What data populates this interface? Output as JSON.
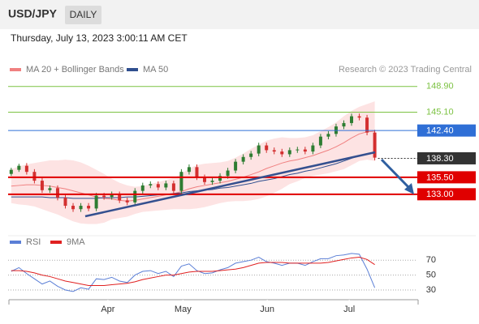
{
  "chart_data": {
    "type": "candlestick",
    "title": "USD/JPY",
    "period": "DAILY",
    "subtitle": "Thursday, July 13, 2023 3:00:11 AM CET",
    "credit": "Research © 2023 Trading Central",
    "xlim": [
      -0.4,
      52.5
    ],
    "ylim": [
      128.2,
      150.3
    ],
    "xticks": [
      {
        "value": 12.5,
        "label": "Apr"
      },
      {
        "value": 22.2,
        "label": "May"
      },
      {
        "value": 33.1,
        "label": "Jun"
      },
      {
        "value": 43.7,
        "label": "Jul"
      }
    ],
    "up_color": "#2e7d32",
    "down_color": "#d32f2f",
    "open": [
      136.0,
      136.6,
      137.2,
      136.3,
      135.0,
      133.6,
      133.9,
      132.5,
      131.3,
      130.8,
      131.3,
      130.9,
      132.8,
      132.6,
      133.0,
      132.1,
      131.8,
      133.5,
      134.3,
      134.5,
      134.0,
      134.6,
      133.5,
      136.3,
      137.0,
      135.5,
      134.8,
      135.0,
      135.7,
      136.5,
      137.8,
      138.5,
      139.0,
      140.2,
      139.5,
      139.3,
      138.9,
      139.5,
      139.6,
      139.3,
      140.2,
      141.5,
      141.9,
      143.0,
      143.5,
      144.5,
      144.3,
      142.1
    ],
    "high": [
      136.9,
      137.5,
      137.6,
      136.7,
      135.4,
      134.3,
      134.3,
      132.9,
      131.7,
      131.7,
      131.7,
      133.2,
      133.2,
      133.4,
      133.4,
      132.5,
      133.9,
      134.7,
      134.9,
      134.9,
      135.0,
      135.0,
      136.7,
      137.4,
      137.4,
      135.9,
      135.4,
      136.1,
      136.9,
      138.2,
      138.9,
      139.4,
      140.6,
      140.6,
      139.9,
      139.7,
      139.9,
      140.0,
      140.0,
      140.6,
      141.9,
      142.3,
      143.4,
      143.9,
      144.9,
      144.9,
      144.7,
      142.5
    ],
    "low": [
      135.7,
      136.3,
      135.9,
      134.6,
      133.2,
      133.2,
      132.1,
      130.9,
      130.4,
      130.4,
      130.5,
      130.5,
      132.2,
      132.2,
      131.7,
      131.4,
      131.4,
      133.1,
      133.9,
      133.6,
      133.6,
      133.1,
      133.1,
      135.9,
      135.1,
      134.4,
      134.4,
      134.6,
      135.3,
      136.1,
      137.4,
      138.1,
      138.6,
      139.1,
      138.9,
      138.5,
      138.5,
      139.1,
      138.9,
      138.9,
      139.8,
      141.1,
      141.5,
      142.6,
      143.1,
      143.9,
      141.7,
      138.0
    ],
    "close": [
      136.6,
      137.2,
      136.3,
      135.0,
      133.6,
      133.9,
      132.5,
      131.3,
      130.8,
      131.3,
      130.9,
      132.8,
      132.6,
      133.0,
      132.1,
      131.8,
      133.5,
      134.3,
      134.5,
      134.0,
      134.6,
      133.5,
      136.3,
      137.0,
      135.5,
      134.8,
      135.0,
      135.7,
      136.5,
      137.8,
      138.5,
      139.0,
      140.2,
      139.5,
      139.3,
      138.9,
      139.5,
      139.6,
      139.3,
      140.2,
      141.5,
      141.9,
      143.0,
      143.5,
      144.5,
      144.3,
      142.1,
      138.4
    ],
    "series": [
      {
        "name": "MA 20 + Bollinger Bands",
        "color": "#f08080",
        "values": [
          134.2,
          134.3,
          134.4,
          134.4,
          134.3,
          134.2,
          134.0,
          133.8,
          133.5,
          133.2,
          132.9,
          132.6,
          132.4,
          132.3,
          132.1,
          132.0,
          132.1,
          132.3,
          132.5,
          132.7,
          132.9,
          133.1,
          133.4,
          133.8,
          134.1,
          134.3,
          134.5,
          134.7,
          134.9,
          135.2,
          135.5,
          135.9,
          136.3,
          136.8,
          137.2,
          137.6,
          137.9,
          138.1,
          138.4,
          138.7,
          139.1,
          139.5,
          140.0,
          140.6,
          141.3,
          141.9,
          142.2,
          142.3
        ],
        "band_color": "#fde3e3",
        "upper": [
          136.7,
          137.1,
          137.4,
          137.6,
          137.8,
          138.0,
          138.0,
          138.1,
          138.0,
          137.7,
          137.2,
          136.6,
          136.0,
          135.3,
          134.7,
          134.3,
          134.1,
          134.2,
          134.5,
          134.8,
          135.1,
          135.4,
          136.0,
          136.8,
          137.3,
          137.5,
          137.6,
          137.7,
          137.9,
          138.4,
          139.0,
          139.7,
          140.3,
          140.9,
          141.2,
          141.4,
          141.3,
          141.3,
          141.4,
          141.7,
          142.3,
          142.9,
          143.6,
          144.5,
          145.3,
          145.9,
          146.3,
          146.7
        ],
        "lower": [
          131.7,
          131.5,
          131.4,
          131.2,
          130.8,
          130.4,
          130.0,
          129.5,
          129.0,
          128.7,
          128.6,
          128.6,
          128.8,
          129.3,
          129.5,
          129.7,
          130.1,
          130.4,
          130.5,
          130.6,
          130.7,
          130.8,
          130.8,
          130.8,
          130.9,
          131.1,
          131.4,
          131.7,
          131.9,
          132.0,
          132.0,
          132.1,
          132.3,
          132.7,
          133.2,
          133.8,
          134.5,
          134.9,
          135.4,
          135.7,
          135.9,
          136.1,
          136.4,
          136.7,
          137.3,
          137.9,
          138.1,
          137.9
        ]
      },
      {
        "name": "MA 50",
        "color": "#2f4f8f",
        "values": [
          132.6,
          132.6,
          132.6,
          132.6,
          132.6,
          132.5,
          132.5,
          132.5,
          132.4,
          132.4,
          132.4,
          132.4,
          132.5,
          132.5,
          132.5,
          132.6,
          132.6,
          132.7,
          132.8,
          132.9,
          133.0,
          133.1,
          133.2,
          133.4,
          133.5,
          133.6,
          133.7,
          133.9,
          134.0,
          134.2,
          134.4,
          134.6,
          134.9,
          135.1,
          135.3,
          135.6,
          135.9,
          136.1,
          136.4,
          136.6,
          136.9,
          137.2,
          137.5,
          137.9,
          138.3,
          138.7,
          139.0,
          139.2
        ]
      }
    ],
    "levels": [
      {
        "value": 148.9,
        "label": "148.90",
        "color": "#7cc242",
        "box": false,
        "dashed": false
      },
      {
        "value": 145.1,
        "label": "145.10",
        "color": "#7cc242",
        "box": false,
        "dashed": false
      },
      {
        "value": 142.4,
        "label": "142.40",
        "color": "#2f6fd6",
        "box": true,
        "dashed": false
      },
      {
        "value": 138.3,
        "label": "138.30",
        "color": "#333333",
        "box": true,
        "dashed": true
      },
      {
        "value": 135.5,
        "label": "135.50",
        "color": "#e00000",
        "box": true,
        "dashed": false
      },
      {
        "value": 133.0,
        "label": "133.00",
        "color": "#e00000",
        "box": true,
        "dashed": false
      }
    ],
    "rsi": {
      "ylim": [
        25,
        80
      ],
      "yticks": [
        70,
        50,
        30
      ],
      "series": [
        {
          "name": "RSI",
          "color": "#5b7fd6",
          "values": [
            55,
            60,
            52,
            45,
            38,
            42,
            35,
            30,
            28,
            33,
            31,
            45,
            44,
            47,
            42,
            40,
            50,
            55,
            56,
            52,
            55,
            48,
            62,
            65,
            56,
            52,
            53,
            57,
            60,
            66,
            68,
            70,
            74,
            68,
            66,
            63,
            66,
            66,
            63,
            68,
            72,
            72,
            76,
            77,
            79,
            78,
            58,
            33
          ]
        },
        {
          "name": "9MA",
          "color": "#e02020",
          "values": [
            56,
            56,
            55,
            53,
            50,
            48,
            45,
            42,
            40,
            38,
            36,
            36,
            36,
            37,
            38,
            39,
            41,
            44,
            46,
            48,
            50,
            50,
            52,
            54,
            55,
            55,
            55,
            56,
            57,
            58,
            60,
            63,
            66,
            67,
            67,
            67,
            66,
            66,
            66,
            66,
            66,
            67,
            69,
            71,
            73,
            74,
            71,
            64
          ]
        }
      ]
    }
  }
}
